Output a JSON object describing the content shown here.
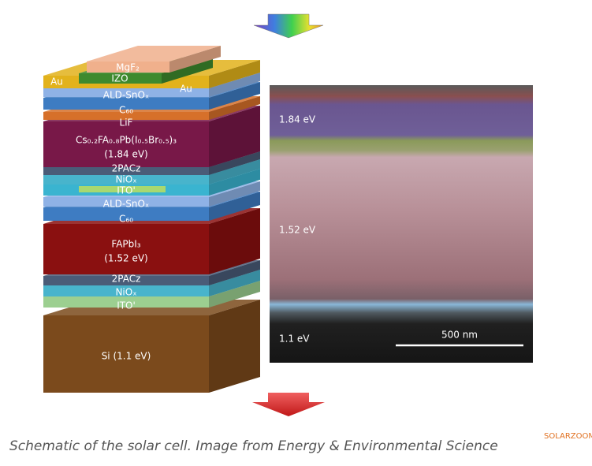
{
  "stack": {
    "layers": [
      {
        "text": [
          "MgF₂"
        ]
      },
      {
        "text": [
          "IZO"
        ]
      },
      {
        "text": [
          "Au"
        ]
      },
      {
        "text": [
          "Au"
        ]
      },
      {
        "text": [
          "ALD-SnOₓ"
        ]
      },
      {
        "text": [
          "C₆₀"
        ]
      },
      {
        "text": [
          "LiF"
        ]
      },
      {
        "text": [
          "Cs₀.₂FA₀.₈Pb(I₀.₅Br₀.₅)₃",
          "(1.84 eV)"
        ]
      },
      {
        "text": [
          "2PACz"
        ]
      },
      {
        "text": [
          "NiOₓ"
        ]
      },
      {
        "text": [
          "ITO'"
        ]
      },
      {
        "text": [
          "ALD-SnOₓ"
        ]
      },
      {
        "text": [
          "C₆₀"
        ]
      },
      {
        "text": [
          "FAPbI₃",
          "(1.52 eV)"
        ]
      },
      {
        "text": [
          "2PACz"
        ]
      },
      {
        "text": [
          "NiOₓ"
        ]
      },
      {
        "text": [
          "ITO'"
        ]
      },
      {
        "text": [
          "Si (1.1 eV)"
        ]
      }
    ]
  },
  "micrograph": {
    "labels": [
      "1.84 eV",
      "1.52 eV",
      "1.1 eV"
    ],
    "scale_bar": "500 nm"
  },
  "caption": "Schematic of the solar cell. Image from Energy & Environmental Science",
  "watermark": "SOLARZOOM"
}
